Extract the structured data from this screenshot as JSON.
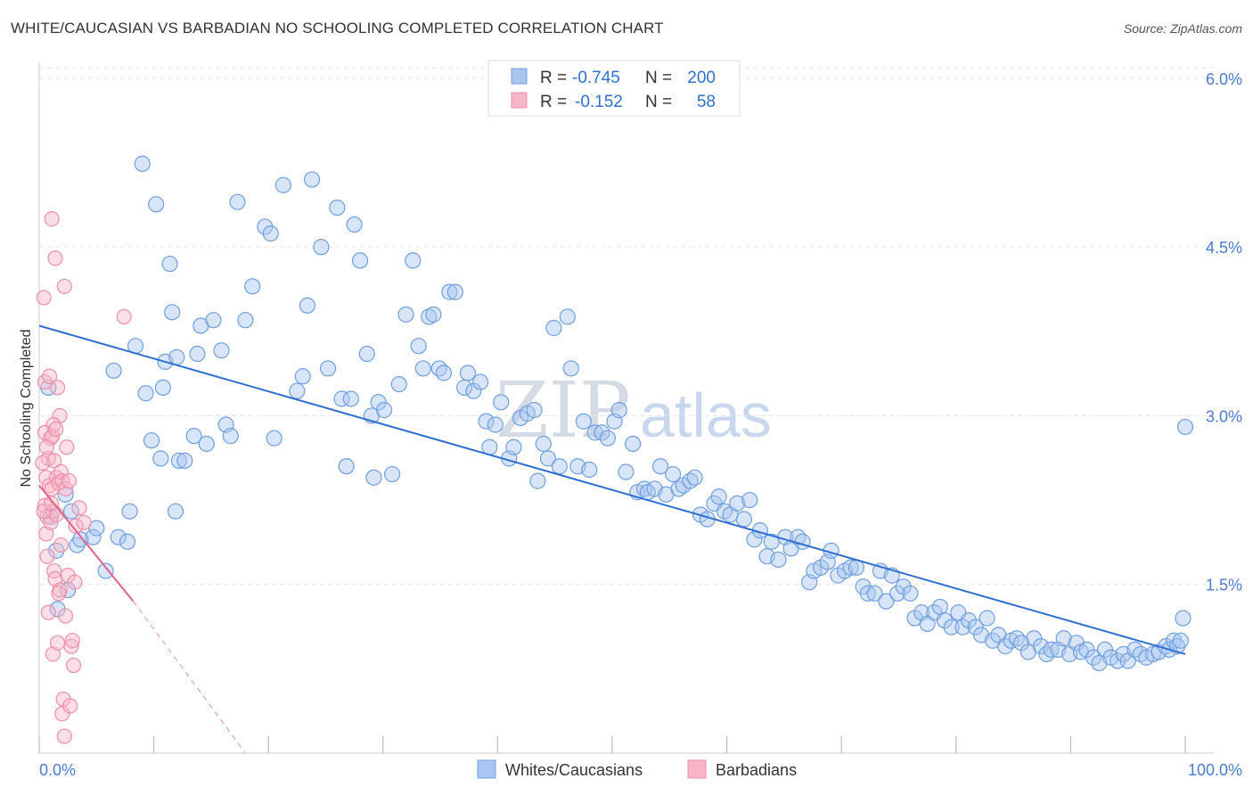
{
  "title": "WHITE/CAUCASIAN VS BARBADIAN NO SCHOOLING COMPLETED CORRELATION CHART",
  "source": "Source: ZipAtlas.com",
  "watermark": {
    "zip": "ZIP",
    "atlas": "atlas"
  },
  "colors": {
    "blue_fill": "#a8c6f0",
    "blue_stroke": "#6f9fe0",
    "blue_line": "#2f6fd0",
    "pink_fill": "#f6b6c8",
    "pink_stroke": "#ec8fab",
    "pink_line": "#e06090",
    "grid": "#e3e3e3",
    "axis_label": "#4a7bd0"
  },
  "legend_top": {
    "rows": [
      {
        "r_label": "R =",
        "r_value": "-0.745",
        "n_label": "N =",
        "n_value": "200"
      },
      {
        "r_label": "R =",
        "r_value": "-0.152",
        "n_label": "N =",
        "n_value": "58"
      }
    ]
  },
  "legend_bottom": {
    "items": [
      "Whites/Caucasians",
      "Barbadians"
    ]
  },
  "chart_data": {
    "type": "scatter",
    "title": "WHITE/CAUCASIAN VS BARBADIAN NO SCHOOLING COMPLETED CORRELATION CHART",
    "xlabel": "",
    "ylabel": "No Schooling Completed",
    "xlim": [
      0,
      100
    ],
    "ylim": [
      0,
      6.3
    ],
    "x_tick_labels": [
      "0.0%",
      "100.0%"
    ],
    "y_ticks": [
      1.5,
      3.0,
      4.5,
      6.0
    ],
    "y_tick_labels": [
      "1.5%",
      "3.0%",
      "4.5%",
      "6.0%"
    ],
    "grid": true,
    "legend_position": "top-center",
    "series": [
      {
        "name": "Whites/Caucasians",
        "r": -0.745,
        "n": 200,
        "trendline": {
          "x": [
            0,
            100
          ],
          "y": [
            3.8,
            0.88
          ]
        },
        "points": [
          [
            0.8,
            3.25
          ],
          [
            1.5,
            1.8
          ],
          [
            1.6,
            1.28
          ],
          [
            2.3,
            2.3
          ],
          [
            2.5,
            1.45
          ],
          [
            2.8,
            2.15
          ],
          [
            3.3,
            1.85
          ],
          [
            4.7,
            1.92
          ],
          [
            5,
            2.0
          ],
          [
            5.8,
            1.62
          ],
          [
            6.5,
            3.4
          ],
          [
            6.9,
            1.92
          ],
          [
            7.7,
            1.88
          ],
          [
            7.9,
            2.15
          ],
          [
            8.4,
            3.62
          ],
          [
            9.0,
            5.24
          ],
          [
            9.3,
            3.2
          ],
          [
            9.8,
            2.78
          ],
          [
            10.2,
            4.88
          ],
          [
            10.6,
            2.62
          ],
          [
            11.0,
            3.48
          ],
          [
            11.4,
            4.35
          ],
          [
            11.6,
            3.92
          ],
          [
            11.9,
            2.15
          ],
          [
            12.0,
            3.52
          ],
          [
            12.2,
            2.6
          ],
          [
            12.7,
            2.6
          ],
          [
            13.5,
            2.82
          ],
          [
            13.8,
            3.55
          ],
          [
            14.1,
            3.8
          ],
          [
            14.6,
            2.75
          ],
          [
            15.2,
            3.85
          ],
          [
            15.9,
            3.58
          ],
          [
            16.3,
            2.92
          ],
          [
            16.7,
            2.82
          ],
          [
            17.3,
            4.9
          ],
          [
            18.0,
            3.85
          ],
          [
            18.6,
            4.15
          ],
          [
            19.7,
            4.68
          ],
          [
            20.2,
            4.62
          ],
          [
            20.5,
            2.8
          ],
          [
            21.3,
            5.05
          ],
          [
            22.5,
            3.22
          ],
          [
            23.0,
            3.35
          ],
          [
            23.4,
            3.98
          ],
          [
            23.8,
            5.1
          ],
          [
            24.6,
            4.5
          ],
          [
            25.2,
            3.42
          ],
          [
            26.0,
            4.85
          ],
          [
            26.4,
            3.15
          ],
          [
            27.2,
            3.15
          ],
          [
            27.5,
            4.7
          ],
          [
            28.0,
            4.38
          ],
          [
            28.6,
            3.55
          ],
          [
            29.0,
            3.0
          ],
          [
            29.6,
            3.12
          ],
          [
            30.1,
            3.05
          ],
          [
            30.8,
            2.48
          ],
          [
            31.4,
            3.28
          ],
          [
            32.0,
            3.9
          ],
          [
            32.6,
            4.38
          ],
          [
            33.1,
            3.62
          ],
          [
            33.5,
            3.42
          ],
          [
            34.0,
            3.88
          ],
          [
            34.4,
            3.9
          ],
          [
            34.9,
            3.42
          ],
          [
            35.3,
            3.38
          ],
          [
            35.8,
            4.1
          ],
          [
            36.3,
            4.1
          ],
          [
            37.1,
            3.25
          ],
          [
            37.4,
            3.38
          ],
          [
            37.9,
            3.22
          ],
          [
            38.5,
            3.3
          ],
          [
            39.0,
            2.95
          ],
          [
            39.3,
            2.72
          ],
          [
            39.8,
            2.92
          ],
          [
            40.3,
            3.12
          ],
          [
            41.0,
            2.62
          ],
          [
            41.4,
            2.72
          ],
          [
            42.0,
            2.98
          ],
          [
            42.6,
            3.02
          ],
          [
            43.2,
            3.05
          ],
          [
            43.5,
            2.42
          ],
          [
            44.0,
            2.75
          ],
          [
            44.4,
            2.62
          ],
          [
            44.9,
            3.78
          ],
          [
            45.4,
            2.55
          ],
          [
            46.1,
            3.88
          ],
          [
            46.4,
            3.42
          ],
          [
            47.0,
            2.55
          ],
          [
            47.5,
            2.95
          ],
          [
            48.0,
            2.52
          ],
          [
            48.5,
            2.85
          ],
          [
            49.1,
            2.85
          ],
          [
            49.6,
            2.8
          ],
          [
            50.2,
            2.95
          ],
          [
            50.6,
            3.05
          ],
          [
            51.2,
            2.5
          ],
          [
            51.8,
            2.75
          ],
          [
            52.2,
            2.32
          ],
          [
            52.8,
            2.35
          ],
          [
            53.1,
            2.32
          ],
          [
            53.7,
            2.35
          ],
          [
            54.2,
            2.55
          ],
          [
            54.7,
            2.3
          ],
          [
            55.3,
            2.48
          ],
          [
            55.8,
            2.35
          ],
          [
            56.2,
            2.38
          ],
          [
            56.8,
            2.42
          ],
          [
            57.2,
            2.45
          ],
          [
            57.7,
            2.12
          ],
          [
            58.3,
            2.08
          ],
          [
            58.9,
            2.22
          ],
          [
            59.3,
            2.28
          ],
          [
            59.8,
            2.15
          ],
          [
            60.3,
            2.12
          ],
          [
            60.9,
            2.22
          ],
          [
            61.5,
            2.08
          ],
          [
            62.0,
            2.25
          ],
          [
            62.4,
            1.9
          ],
          [
            62.9,
            1.98
          ],
          [
            63.5,
            1.75
          ],
          [
            63.9,
            1.88
          ],
          [
            64.5,
            1.72
          ],
          [
            65.1,
            1.92
          ],
          [
            65.6,
            1.82
          ],
          [
            66.2,
            1.92
          ],
          [
            66.6,
            1.88
          ],
          [
            67.2,
            1.52
          ],
          [
            67.6,
            1.62
          ],
          [
            68.2,
            1.65
          ],
          [
            68.8,
            1.7
          ],
          [
            69.1,
            1.8
          ],
          [
            69.7,
            1.58
          ],
          [
            70.3,
            1.62
          ],
          [
            70.8,
            1.65
          ],
          [
            71.3,
            1.65
          ],
          [
            71.9,
            1.48
          ],
          [
            72.3,
            1.42
          ],
          [
            72.9,
            1.42
          ],
          [
            73.4,
            1.62
          ],
          [
            73.9,
            1.35
          ],
          [
            74.4,
            1.58
          ],
          [
            74.9,
            1.42
          ],
          [
            75.4,
            1.48
          ],
          [
            76.0,
            1.42
          ],
          [
            76.4,
            1.2
          ],
          [
            77.0,
            1.25
          ],
          [
            77.5,
            1.15
          ],
          [
            78.1,
            1.25
          ],
          [
            78.6,
            1.3
          ],
          [
            79.0,
            1.18
          ],
          [
            79.6,
            1.12
          ],
          [
            80.2,
            1.25
          ],
          [
            80.6,
            1.12
          ],
          [
            81.1,
            1.18
          ],
          [
            81.7,
            1.12
          ],
          [
            82.2,
            1.05
          ],
          [
            82.7,
            1.2
          ],
          [
            83.2,
            1.0
          ],
          [
            83.7,
            1.05
          ],
          [
            84.3,
            0.95
          ],
          [
            84.8,
            1.0
          ],
          [
            85.3,
            1.02
          ],
          [
            85.7,
            0.98
          ],
          [
            86.3,
            0.9
          ],
          [
            86.8,
            1.02
          ],
          [
            87.4,
            0.95
          ],
          [
            87.9,
            0.88
          ],
          [
            88.3,
            0.92
          ],
          [
            88.9,
            0.92
          ],
          [
            89.4,
            1.02
          ],
          [
            89.9,
            0.88
          ],
          [
            90.5,
            0.98
          ],
          [
            90.9,
            0.9
          ],
          [
            91.4,
            0.92
          ],
          [
            92.0,
            0.85
          ],
          [
            92.5,
            0.8
          ],
          [
            93.0,
            0.92
          ],
          [
            93.5,
            0.85
          ],
          [
            94.1,
            0.82
          ],
          [
            94.6,
            0.88
          ],
          [
            95.0,
            0.82
          ],
          [
            95.6,
            0.92
          ],
          [
            96.1,
            0.88
          ],
          [
            96.6,
            0.85
          ],
          [
            97.2,
            0.88
          ],
          [
            97.7,
            0.9
          ],
          [
            98.3,
            0.95
          ],
          [
            98.6,
            0.92
          ],
          [
            99.0,
            1.0
          ],
          [
            99.3,
            0.95
          ],
          [
            99.6,
            1.0
          ],
          [
            99.8,
            1.2
          ],
          [
            100.0,
            2.9
          ],
          [
            1.0,
            2.1
          ],
          [
            3.6,
            1.9
          ],
          [
            10.8,
            3.25
          ],
          [
            26.8,
            2.55
          ],
          [
            29.2,
            2.45
          ]
        ]
      },
      {
        "name": "Barbadians",
        "r": -0.152,
        "n": 58,
        "trendline": {
          "x": [
            0,
            8.2
          ],
          "y": [
            2.38,
            1.35
          ],
          "dashed_extension_to": [
            18,
            0.0
          ]
        },
        "points": [
          [
            0.4,
            4.05
          ],
          [
            0.5,
            3.3
          ],
          [
            0.5,
            2.85
          ],
          [
            0.5,
            2.2
          ],
          [
            0.6,
            2.45
          ],
          [
            0.6,
            1.95
          ],
          [
            0.7,
            2.1
          ],
          [
            0.7,
            1.75
          ],
          [
            0.8,
            1.25
          ],
          [
            0.8,
            2.62
          ],
          [
            0.9,
            2.38
          ],
          [
            0.9,
            3.35
          ],
          [
            1.0,
            2.8
          ],
          [
            1.0,
            2.05
          ],
          [
            1.1,
            4.75
          ],
          [
            1.1,
            2.35
          ],
          [
            1.2,
            0.88
          ],
          [
            1.2,
            2.15
          ],
          [
            1.3,
            1.62
          ],
          [
            1.3,
            2.6
          ],
          [
            1.4,
            4.4
          ],
          [
            1.4,
            1.55
          ],
          [
            1.5,
            2.45
          ],
          [
            1.5,
            2.12
          ],
          [
            1.6,
            3.25
          ],
          [
            1.6,
            0.98
          ],
          [
            1.7,
            1.42
          ],
          [
            1.7,
            2.4
          ],
          [
            1.8,
            3.0
          ],
          [
            1.8,
            1.45
          ],
          [
            1.9,
            2.5
          ],
          [
            1.9,
            1.85
          ],
          [
            2.0,
            2.42
          ],
          [
            2.0,
            0.35
          ],
          [
            2.1,
            0.48
          ],
          [
            2.2,
            4.15
          ],
          [
            2.2,
            0.15
          ],
          [
            2.3,
            1.22
          ],
          [
            2.3,
            2.35
          ],
          [
            2.4,
            2.72
          ],
          [
            2.5,
            1.58
          ],
          [
            2.6,
            2.42
          ],
          [
            2.7,
            0.42
          ],
          [
            2.8,
            0.95
          ],
          [
            2.9,
            1.0
          ],
          [
            3.0,
            0.78
          ],
          [
            3.1,
            1.52
          ],
          [
            3.2,
            2.02
          ],
          [
            3.5,
            2.18
          ],
          [
            3.9,
            2.05
          ],
          [
            7.4,
            3.88
          ],
          [
            0.3,
            2.58
          ],
          [
            0.4,
            2.15
          ],
          [
            1.05,
            2.22
          ],
          [
            1.15,
            2.82
          ],
          [
            1.25,
            2.92
          ],
          [
            1.45,
            2.88
          ],
          [
            0.65,
            2.72
          ]
        ]
      }
    ]
  }
}
